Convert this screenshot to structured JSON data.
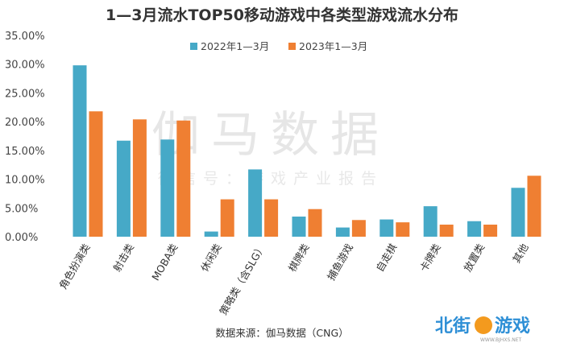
{
  "chart_data": {
    "type": "bar",
    "title": "1—3月流水TOP50移动游戏中各类型游戏流水分布",
    "xlabel": "",
    "ylabel": "",
    "ylim": [
      0,
      35
    ],
    "yticks": [
      "0.00%",
      "5.00%",
      "10.00%",
      "15.00%",
      "20.00%",
      "25.00%",
      "30.00%",
      "35.00%"
    ],
    "grid": false,
    "legend_position": "top-right",
    "categories": [
      "角色扮演类",
      "射击类",
      "MOBA类",
      "休闲类",
      "策略类（含SLG）",
      "棋牌类",
      "捕鱼游戏",
      "自走棋",
      "卡牌类",
      "放置类",
      "其他"
    ],
    "series": [
      {
        "name": "2022年1—3月",
        "color": "#46a9c7",
        "values": [
          29.8,
          16.7,
          16.9,
          0.9,
          11.7,
          3.5,
          1.6,
          3.0,
          5.3,
          2.7,
          8.5
        ]
      },
      {
        "name": "2023年1—3月",
        "color": "#ef7f32",
        "values": [
          21.8,
          20.4,
          20.2,
          6.5,
          6.5,
          4.8,
          2.9,
          2.5,
          2.1,
          2.1,
          10.6
        ]
      }
    ]
  },
  "source": "数据来源：伽马数据（CNG）",
  "watermark": {
    "main": "伽马数据",
    "sub": "微信号：游戏产业报告"
  },
  "logo": {
    "text": "北街游戏",
    "url": "WWW.BJHXS.NET"
  }
}
